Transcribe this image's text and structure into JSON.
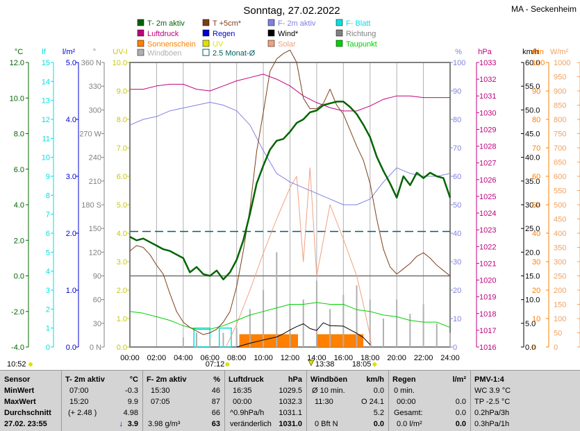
{
  "title": "Sonntag, 27.02.2022",
  "station": "MA - Seckenheim",
  "colors": {
    "temp": "#006400",
    "temp5": "#7b3f1a",
    "humidity": "#8080e0",
    "leaf": "#00e0e0",
    "pressure": "#c0007f",
    "rain": "#0000d0",
    "wind": "#000000",
    "direction": "#808080",
    "sun": "#ff7f00",
    "uv": "#e0e000",
    "solar": "#f0a080",
    "dew": "#00d000",
    "gust": "#b0b0b0",
    "avg": "#006060",
    "frame": "#808080"
  },
  "legend": [
    {
      "label": "T- 2m aktiv",
      "color": "#006400",
      "kind": "box"
    },
    {
      "label": "T +5cm*",
      "color": "#7b3f1a",
      "kind": "box"
    },
    {
      "label": "F- 2m aktiv",
      "color": "#8080e0",
      "kind": "box"
    },
    {
      "label": "F- Blatt",
      "color": "#00e0e0",
      "kind": "box"
    },
    {
      "label": "Luftdruck",
      "color": "#c0007f",
      "kind": "box"
    },
    {
      "label": "Regen",
      "color": "#0000d0",
      "kind": "box"
    },
    {
      "label": "Wind*",
      "color": "#000000",
      "kind": "box"
    },
    {
      "label": "Richtung",
      "color": "#808080",
      "kind": "box"
    },
    {
      "label": "Sonnenschein",
      "color": "#ff7f00",
      "kind": "box"
    },
    {
      "label": "UV",
      "color": "#e0e000",
      "kind": "box"
    },
    {
      "label": "Solar",
      "color": "#f0a080",
      "kind": "box"
    },
    {
      "label": "Taupunkt",
      "color": "#00d000",
      "kind": "box"
    },
    {
      "label": "Windböen",
      "color": "#b0b0b0",
      "kind": "box"
    },
    {
      "label": "2.5 Monat-Ø",
      "color": "#006060",
      "kind": "outline"
    }
  ],
  "chart_data": {
    "type": "line",
    "x_ticks": [
      "00:00",
      "02:00",
      "04:00",
      "06:00",
      "08:00",
      "10:00",
      "12:00",
      "14:00",
      "16:00",
      "18:00",
      "20:00",
      "22:00",
      "24:00"
    ],
    "grid": true,
    "axes": {
      "temp_c": {
        "unit": "°C",
        "ticks": [
          "-4.0",
          "-2.0",
          "0.0",
          "2.0",
          "4.0",
          "6.0",
          "8.0",
          "10.0",
          "12.0"
        ],
        "range": [
          -4,
          12
        ]
      },
      "leaf": {
        "unit": "lf",
        "ticks": [
          "0",
          "1",
          "2",
          "3",
          "4",
          "5",
          "6",
          "7",
          "8",
          "9",
          "10",
          "11",
          "12",
          "13",
          "14",
          "15"
        ],
        "range": [
          0,
          15
        ]
      },
      "rain_lm2": {
        "unit": "l/m²",
        "ticks": [
          "0.0",
          "1.0",
          "2.0",
          "3.0",
          "4.0",
          "5.0"
        ],
        "range": [
          0,
          5
        ]
      },
      "direction": {
        "unit": "°",
        "ticks": [
          "0 N",
          "30",
          "60",
          "90",
          "120",
          "150",
          "180 S",
          "210",
          "240",
          "270 W",
          "300",
          "330",
          "360 N"
        ],
        "range": [
          0,
          360
        ]
      },
      "uv": {
        "unit": "UV-I",
        "ticks": [
          "0.0",
          "1.0",
          "2.0",
          "3.0",
          "4.0",
          "5.0",
          "6.0",
          "7.0",
          "8.0",
          "9.0",
          "10.0"
        ],
        "range": [
          0,
          10
        ]
      },
      "humidity": {
        "unit": "%",
        "ticks": [
          "0",
          "10",
          "20",
          "30",
          "40",
          "50",
          "60",
          "70",
          "80",
          "90",
          "100"
        ],
        "range": [
          0,
          100
        ]
      },
      "pressure": {
        "unit": "hPa",
        "ticks": [
          "1016",
          "1017",
          "1018",
          "1019",
          "1020",
          "1021",
          "1022",
          "1023",
          "1024",
          "1025",
          "1026",
          "1027",
          "1028",
          "1029",
          "1030",
          "1031",
          "1032",
          "1033"
        ],
        "range": [
          1016,
          1033
        ]
      },
      "wind": {
        "unit": "km/h",
        "ticks": [
          "0.0",
          "5.0",
          "10.0",
          "15.0",
          "20.0",
          "25.0",
          "30.0",
          "35.0",
          "40.0",
          "45.0",
          "50.0",
          "55.0",
          "60.0"
        ],
        "range": [
          0,
          60
        ]
      },
      "sun_min": {
        "unit": "min",
        "ticks": [
          "0",
          "10",
          "20",
          "30",
          "40",
          "50",
          "60",
          "70",
          "80",
          "90",
          "100"
        ],
        "range": [
          0,
          100
        ]
      },
      "solar": {
        "unit": "W/m²",
        "ticks": [
          "0",
          "50",
          "100",
          "150",
          "200",
          "250",
          "300",
          "350",
          "400",
          "450",
          "500",
          "550",
          "600",
          "650",
          "700",
          "750",
          "800",
          "850",
          "900",
          "950",
          "1000"
        ],
        "range": [
          0,
          1000
        ]
      }
    },
    "series": [
      {
        "name": "T- 2m aktiv",
        "axis": "temp_c",
        "x": [
          0,
          0.5,
          1,
          1.5,
          2,
          2.5,
          3,
          3.5,
          4,
          4.5,
          5,
          5.5,
          6,
          6.5,
          7,
          7.5,
          8,
          8.5,
          9,
          9.5,
          10,
          10.5,
          11,
          11.5,
          12,
          12.5,
          13,
          13.5,
          14,
          14.5,
          15,
          15.5,
          16,
          16.5,
          17,
          17.5,
          18,
          18.5,
          19,
          19.5,
          20,
          20.5,
          21,
          21.5,
          22,
          22.5,
          23,
          23.5,
          24
        ],
        "y": [
          2.2,
          2.0,
          2.1,
          1.9,
          1.7,
          1.5,
          1.4,
          1.2,
          1.0,
          0.2,
          0.5,
          0.1,
          0.0,
          0.3,
          -0.2,
          0.2,
          0.9,
          2.0,
          3.5,
          5.2,
          6.2,
          7.1,
          7.6,
          7.7,
          8.1,
          8.6,
          8.8,
          9.2,
          9.3,
          9.6,
          9.7,
          9.8,
          9.8,
          9.5,
          9.1,
          8.5,
          7.8,
          6.7,
          5.9,
          5.2,
          4.4,
          5.6,
          5.1,
          5.8,
          5.5,
          5.8,
          5.6,
          5.5,
          4.4
        ]
      },
      {
        "name": "T +5cm*",
        "axis": "temp_c",
        "x": [
          0,
          0.5,
          1,
          1.5,
          2,
          2.5,
          3,
          3.5,
          4,
          4.5,
          5,
          5.5,
          6,
          6.5,
          7,
          7.5,
          8,
          8.5,
          9,
          9.5,
          10,
          10.5,
          11,
          11.5,
          12,
          12.5,
          13,
          13.5,
          14,
          14.5,
          15,
          15.5,
          16,
          16.5,
          17,
          17.5,
          18,
          18.5,
          19,
          19.5,
          20,
          20.5,
          21,
          21.5,
          22,
          22.5,
          23,
          23.5,
          24
        ],
        "y": [
          1.4,
          1.7,
          1.6,
          1.2,
          0.6,
          0.1,
          -1.0,
          -2.0,
          -2.6,
          -2.9,
          -3.1,
          -3.3,
          -3.2,
          -3.0,
          -2.6,
          -2.0,
          -0.6,
          1.4,
          3.8,
          7.0,
          9.2,
          11.5,
          12.2,
          12.5,
          12.7,
          12.0,
          10.0,
          9.4,
          9.4,
          9.7,
          10.5,
          9.6,
          9.1,
          8.2,
          7.3,
          6.5,
          5.2,
          3.2,
          1.5,
          0.5,
          0.1,
          0.4,
          0.7,
          1.1,
          1.3,
          1.0,
          0.6,
          0.3,
          0.0
        ]
      },
      {
        "name": "F- 2m aktiv",
        "axis": "humidity",
        "x": [
          0,
          1,
          2,
          3,
          4,
          5,
          6,
          7,
          8,
          9,
          10,
          11,
          12,
          13,
          14,
          15,
          16,
          17,
          18,
          19,
          20,
          21,
          22,
          23,
          24
        ],
        "y": [
          78,
          80,
          81,
          83,
          84,
          85,
          86,
          85,
          83,
          78,
          69,
          61,
          58,
          56,
          54,
          52,
          50,
          50,
          52,
          58,
          63,
          61,
          60,
          60,
          61
        ]
      },
      {
        "name": "Luftdruck",
        "axis": "pressure",
        "x": [
          0,
          1,
          2,
          3,
          4,
          5,
          6,
          7,
          8,
          9,
          10,
          11,
          12,
          13,
          14,
          15,
          16,
          17,
          18,
          19,
          20,
          21,
          22,
          23,
          24
        ],
        "y": [
          1031.4,
          1031.4,
          1031.6,
          1031.7,
          1031.7,
          1031.4,
          1031.3,
          1031.6,
          1031.9,
          1032.1,
          1032.3,
          1032.0,
          1031.6,
          1031.0,
          1030.6,
          1030.3,
          1030.1,
          1030.1,
          1030.4,
          1030.8,
          1031.0,
          1031.0,
          1030.9,
          1030.9,
          1030.9
        ]
      },
      {
        "name": "Taupunkt",
        "axis": "temp_c",
        "x": [
          0,
          1,
          2,
          3,
          4,
          5,
          6,
          7,
          8,
          9,
          10,
          11,
          12,
          13,
          14,
          15,
          16,
          17,
          18,
          19,
          20,
          21,
          22,
          23,
          24
        ],
        "y": [
          -2.0,
          -2.1,
          -2.3,
          -2.5,
          -2.8,
          -3.0,
          -3.0,
          -2.8,
          -2.5,
          -2.2,
          -2.0,
          -1.8,
          -1.6,
          -1.6,
          -1.5,
          -1.6,
          -1.6,
          -1.9,
          -2.0,
          -2.2,
          -2.3,
          -2.5,
          -2.6,
          -2.6,
          -2.9
        ]
      },
      {
        "name": "Solar",
        "axis": "solar",
        "x": [
          7.2,
          8,
          9,
          10,
          11,
          12,
          12.5,
          13,
          13.5,
          14,
          15,
          16,
          17,
          17.5,
          18,
          18.1
        ],
        "y": [
          0,
          80,
          200,
          330,
          450,
          560,
          600,
          300,
          630,
          250,
          500,
          380,
          250,
          150,
          40,
          0
        ]
      },
      {
        "name": "Wind*",
        "axis": "wind",
        "x": [
          8,
          9,
          10,
          11,
          11.5,
          12,
          12.5,
          13,
          13.5,
          14,
          14.5,
          15,
          16,
          17,
          17.5,
          18
        ],
        "y": [
          0,
          0.8,
          1.5,
          2.1,
          2.8,
          3.6,
          4.3,
          4.9,
          3.9,
          3.5,
          5.1,
          4.5,
          4.4,
          2.9,
          2.0,
          0.5
        ]
      },
      {
        "name": "Windböen",
        "axis": "wind",
        "x": [
          4,
          5,
          6,
          7,
          8,
          9,
          10,
          11,
          12,
          13,
          14,
          15,
          16,
          17,
          18,
          19,
          20,
          21,
          22,
          23,
          24
        ],
        "y": [
          2,
          3,
          2,
          3,
          4,
          8,
          12,
          20,
          9,
          10,
          14,
          8,
          11,
          13,
          10,
          6,
          10,
          7,
          9,
          5,
          3
        ]
      },
      {
        "name": "2.5 Monat-Ø",
        "axis": "temp_c",
        "x": [
          0,
          24
        ],
        "y": [
          2.5,
          2.5
        ]
      }
    ],
    "sunshine_blocks": [
      [
        8.2,
        12.6
      ],
      [
        14.0,
        17.5
      ]
    ],
    "leaf_blocks": [
      [
        4.8,
        6.0
      ],
      [
        6.7,
        7.6
      ]
    ]
  },
  "sun_events": {
    "sunrise": "07:12",
    "noon": "13:38",
    "sunset": "18:05"
  },
  "time_label": "10:52",
  "table": {
    "sensor": {
      "h": "Sensor",
      "r1": "MinWert",
      "r2": "MaxWert",
      "r3": "Durchschnitt",
      "r4": "27.02. 23:55"
    },
    "temp": {
      "h": "T- 2m aktiv",
      "unit": "°C",
      "min_t": "07:00",
      "min_v": "-0.3",
      "max_t": "15:20",
      "max_v": "9.9",
      "avg_note": "(+ 2.48 )",
      "avg_v": "4.98",
      "cur_v": "3.9",
      "arrow": "↓"
    },
    "hum": {
      "h": "F- 2m aktiv",
      "unit": "%",
      "min_t": "15:30",
      "min_v": "46",
      "max_t": "07:05",
      "max_v": "87",
      "avg_v": "66",
      "cur_note": "3.98 g/m³",
      "cur_v": "63"
    },
    "press": {
      "h": "Luftdruck",
      "unit": "hPa",
      "min_t": "16:35",
      "min_v": "1029.5",
      "max_t": "00:00",
      "max_v": "1032.3",
      "avg_note": "^0.9hPa/h",
      "avg_v": "1031.1",
      "cur_note": "veränderlich",
      "cur_v": "1031.0"
    },
    "gust": {
      "h": "Windböen",
      "unit": "km/h",
      "r1a": "Ø 10 min.",
      "r1b": "0.0",
      "r2a": "11:30",
      "r2b": "O 24.1",
      "r3b": "5.2",
      "r4a": "0 Bft N",
      "r4b": "0.0"
    },
    "rain": {
      "h": "Regen",
      "unit": "l/m²",
      "r1a": "0 min.",
      "r2a": "00:00",
      "r2b": "0.0",
      "r3a": "Gesamt:",
      "r3b": "0.0",
      "r4a": "0.0 l/m²",
      "r4b": "0.0"
    },
    "pmv": {
      "h": "PMV-1:4",
      "r1": "WC 3.9 °C",
      "r2": "TP -2.5 °C",
      "r3": "0.2hPa/3h",
      "r4": "0.3hPa/1h"
    }
  }
}
